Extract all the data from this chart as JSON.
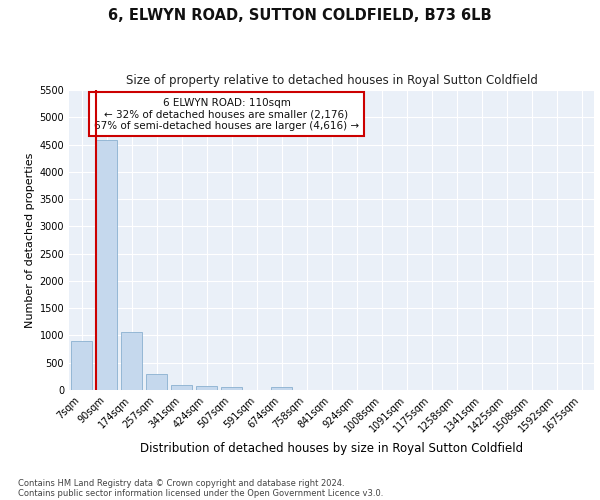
{
  "title": "6, ELWYN ROAD, SUTTON COLDFIELD, B73 6LB",
  "subtitle": "Size of property relative to detached houses in Royal Sutton Coldfield",
  "xlabel": "Distribution of detached houses by size in Royal Sutton Coldfield",
  "ylabel": "Number of detached properties",
  "footnote1": "Contains HM Land Registry data © Crown copyright and database right 2024.",
  "footnote2": "Contains public sector information licensed under the Open Government Licence v3.0.",
  "categories": [
    "7sqm",
    "90sqm",
    "174sqm",
    "257sqm",
    "341sqm",
    "424sqm",
    "507sqm",
    "591sqm",
    "674sqm",
    "758sqm",
    "841sqm",
    "924sqm",
    "1008sqm",
    "1091sqm",
    "1175sqm",
    "1258sqm",
    "1341sqm",
    "1425sqm",
    "1508sqm",
    "1592sqm",
    "1675sqm"
  ],
  "values": [
    900,
    4580,
    1070,
    290,
    90,
    65,
    50,
    0,
    60,
    0,
    0,
    0,
    0,
    0,
    0,
    0,
    0,
    0,
    0,
    0,
    0
  ],
  "bar_color": "#c5d8ed",
  "bar_edge_color": "#8ab0d0",
  "highlight_bar_index": 1,
  "highlight_color": "#cc0000",
  "ylim": [
    0,
    5500
  ],
  "yticks": [
    0,
    500,
    1000,
    1500,
    2000,
    2500,
    3000,
    3500,
    4000,
    4500,
    5000,
    5500
  ],
  "annotation_title": "6 ELWYN ROAD: 110sqm",
  "annotation_line1": "← 32% of detached houses are smaller (2,176)",
  "annotation_line2": "67% of semi-detached houses are larger (4,616) →",
  "annotation_box_color": "#cc0000",
  "bg_color": "#eaf0f8",
  "grid_color": "#ffffff",
  "title_fontsize": 10.5,
  "subtitle_fontsize": 8.5,
  "axis_label_fontsize": 8,
  "tick_fontsize": 7,
  "annotation_fontsize": 7.5,
  "footnote_fontsize": 6
}
